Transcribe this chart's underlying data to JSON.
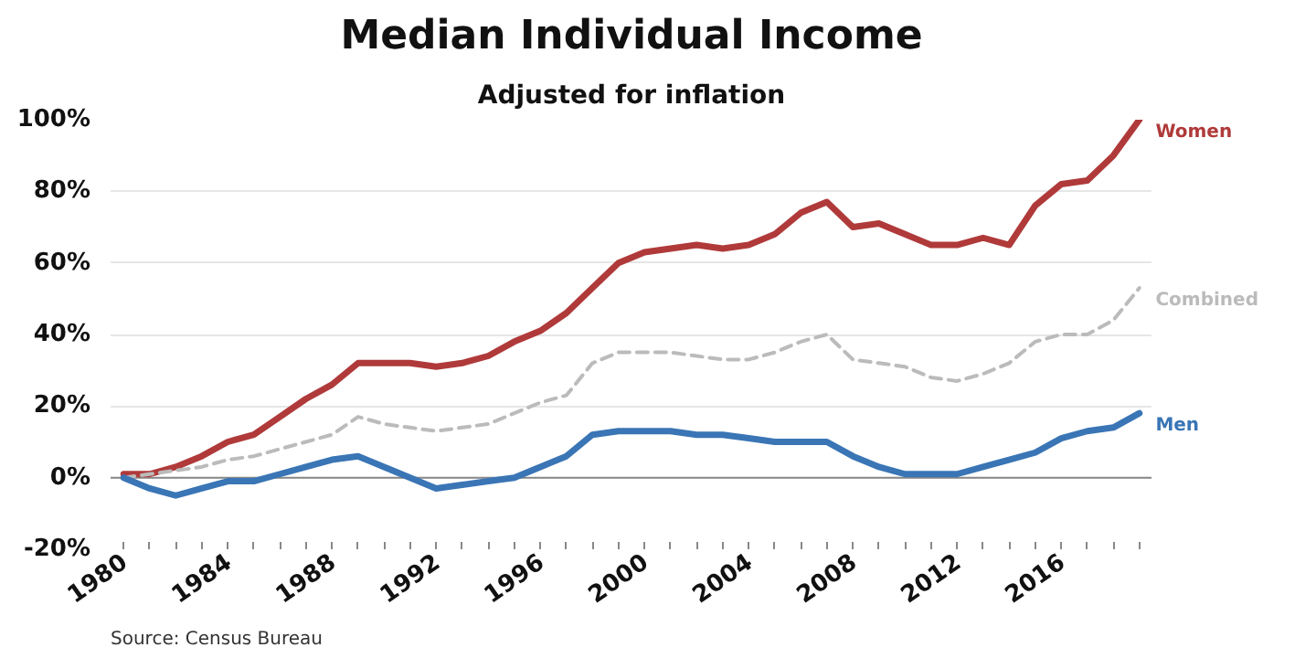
{
  "chart_data": {
    "type": "line",
    "title": "Median Individual Income",
    "subtitle": "Adjusted for inflation",
    "x": [
      1980,
      1981,
      1982,
      1983,
      1984,
      1985,
      1986,
      1987,
      1988,
      1989,
      1990,
      1991,
      1992,
      1993,
      1994,
      1995,
      1996,
      1997,
      1998,
      1999,
      2000,
      2001,
      2002,
      2003,
      2004,
      2005,
      2006,
      2007,
      2008,
      2009,
      2010,
      2011,
      2012,
      2013,
      2014,
      2015,
      2016,
      2017,
      2018,
      2019
    ],
    "series": [
      {
        "name": "Women",
        "color": "#b03a3a",
        "line_style": "solid",
        "values": [
          1,
          1,
          3,
          6,
          10,
          12,
          17,
          22,
          26,
          32,
          32,
          32,
          31,
          32,
          34,
          38,
          41,
          46,
          53,
          60,
          63,
          64,
          65,
          64,
          65,
          68,
          74,
          77,
          70,
          71,
          68,
          65,
          65,
          67,
          65,
          76,
          82,
          83,
          90,
          100
        ]
      },
      {
        "name": "Combined",
        "color": "#bbbbbb",
        "line_style": "dashed",
        "values": [
          0,
          1,
          2,
          3,
          5,
          6,
          8,
          10,
          12,
          17,
          15,
          14,
          13,
          14,
          15,
          18,
          21,
          23,
          32,
          35,
          35,
          35,
          34,
          33,
          33,
          35,
          38,
          40,
          33,
          32,
          31,
          28,
          27,
          29,
          32,
          38,
          40,
          40,
          44,
          53
        ]
      },
      {
        "name": "Men",
        "color": "#3a75b5",
        "line_style": "solid",
        "values": [
          0,
          -3,
          -5,
          -3,
          -1,
          -1,
          1,
          3,
          5,
          6,
          3,
          0,
          -3,
          -2,
          -1,
          0,
          3,
          6,
          12,
          13,
          13,
          13,
          12,
          12,
          11,
          10,
          10,
          10,
          6,
          3,
          1,
          1,
          1,
          3,
          5,
          7,
          11,
          13,
          14,
          18
        ]
      }
    ],
    "xlim": [
      1979.5,
      2019.5
    ],
    "xticks": [
      1980,
      {
        "value": 1981,
        "label": null
      },
      {
        "value": 1982,
        "label": null
      },
      {
        "value": 1983,
        "label": null
      },
      1984,
      {
        "value": 1985,
        "label": null
      },
      {
        "value": 1986,
        "label": null
      },
      {
        "value": 1987,
        "label": null
      },
      1988,
      {
        "value": 1989,
        "label": null
      },
      {
        "value": 1990,
        "label": null
      },
      {
        "value": 1991,
        "label": null
      },
      1992,
      {
        "value": 1993,
        "label": null
      },
      {
        "value": 1994,
        "label": null
      },
      {
        "value": 1995,
        "label": null
      },
      1996,
      {
        "value": 1997,
        "label": null
      },
      {
        "value": 1998,
        "label": null
      },
      {
        "value": 1999,
        "label": null
      },
      2000,
      {
        "value": 2001,
        "label": null
      },
      {
        "value": 2002,
        "label": null
      },
      {
        "value": 2003,
        "label": null
      },
      2004,
      {
        "value": 2005,
        "label": null
      },
      {
        "value": 2006,
        "label": null
      },
      {
        "value": 2007,
        "label": null
      },
      2008,
      {
        "value": 2009,
        "label": null
      },
      {
        "value": 2010,
        "label": null
      },
      {
        "value": 2011,
        "label": null
      },
      2012,
      {
        "value": 2013,
        "label": null
      },
      {
        "value": 2014,
        "label": null
      },
      {
        "value": 2015,
        "label": null
      },
      2016,
      {
        "value": 2017,
        "label": null
      },
      {
        "value": 2018,
        "label": null
      },
      {
        "value": 2019,
        "label": null
      }
    ],
    "ylim": [
      -20,
      100
    ],
    "yticks": [
      {
        "value": -20,
        "label": "-20%"
      },
      {
        "value": 0,
        "label": "0%"
      },
      {
        "value": 20,
        "label": "20%"
      },
      {
        "value": 40,
        "label": "40%"
      },
      {
        "value": 60,
        "label": "60%"
      },
      {
        "value": 80,
        "label": "80%"
      },
      {
        "value": 100,
        "label": "100%"
      }
    ],
    "grid": "y",
    "marker": "none",
    "annotations": [
      "Source: Census Bureau"
    ]
  }
}
